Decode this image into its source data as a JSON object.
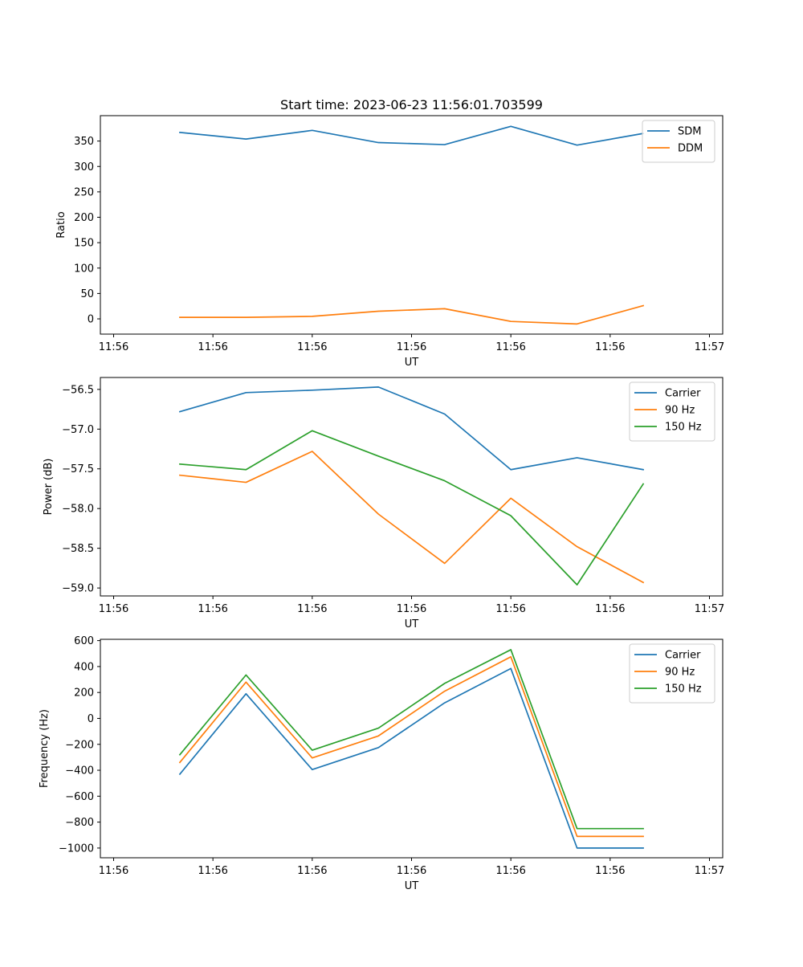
{
  "chart_data": [
    {
      "type": "line",
      "title": "Start time: 2023-06-23 11:56:01.703599",
      "xlabel": "UT",
      "ylabel": "Ratio",
      "x": [
        1,
        2,
        3,
        4,
        5,
        6,
        7,
        8
      ],
      "x_tick_values": [
        0,
        1.5,
        3,
        4.5,
        6,
        7.5,
        9
      ],
      "x_tick_labels": [
        "11:56",
        "11:56",
        "11:56",
        "11:56",
        "11:56",
        "11:56",
        "11:57"
      ],
      "xlim": [
        -0.2,
        9.2
      ],
      "ylim": [
        -30,
        400
      ],
      "y_ticks": [
        0,
        50,
        100,
        150,
        200,
        250,
        300,
        350
      ],
      "y_tick_labels": [
        "0",
        "50",
        "100",
        "150",
        "200",
        "250",
        "300",
        "350"
      ],
      "legend_position": "top-right",
      "grid": false,
      "series": [
        {
          "name": "SDM",
          "color": "#1f77b4",
          "values": [
            367,
            354,
            371,
            347,
            343,
            379,
            342,
            365
          ]
        },
        {
          "name": "DDM",
          "color": "#ff7f0e",
          "values": [
            3,
            3,
            5,
            15,
            20,
            -5,
            -10,
            26
          ]
        }
      ]
    },
    {
      "type": "line",
      "title": "",
      "xlabel": "UT",
      "ylabel": "Power (dB)",
      "x": [
        1,
        2,
        3,
        4,
        5,
        6,
        7,
        8
      ],
      "x_tick_values": [
        0,
        1.5,
        3,
        4.5,
        6,
        7.5,
        9
      ],
      "x_tick_labels": [
        "11:56",
        "11:56",
        "11:56",
        "11:56",
        "11:56",
        "11:56",
        "11:57"
      ],
      "xlim": [
        -0.2,
        9.2
      ],
      "ylim": [
        -59.1,
        -56.35
      ],
      "y_ticks": [
        -59.0,
        -58.5,
        -58.0,
        -57.5,
        -57.0,
        -56.5
      ],
      "y_tick_labels": [
        "−59.0",
        "−58.5",
        "−58.0",
        "−57.5",
        "−57.0",
        "−56.5"
      ],
      "legend_position": "top-right",
      "grid": false,
      "series": [
        {
          "name": "Carrier",
          "color": "#1f77b4",
          "values": [
            -56.78,
            -56.54,
            -56.51,
            -56.47,
            -56.81,
            -57.51,
            -57.36,
            -57.51
          ]
        },
        {
          "name": "90 Hz",
          "color": "#ff7f0e",
          "values": [
            -57.58,
            -57.67,
            -57.28,
            -58.07,
            -58.69,
            -57.87,
            -58.48,
            -58.93
          ]
        },
        {
          "name": "150 Hz",
          "color": "#2ca02c",
          "values": [
            -57.44,
            -57.51,
            -57.02,
            -57.34,
            -57.65,
            -58.09,
            -58.96,
            -57.69
          ]
        }
      ]
    },
    {
      "type": "line",
      "title": "",
      "xlabel": "UT",
      "ylabel": "Frequency (Hz)",
      "x": [
        1,
        2,
        3,
        4,
        5,
        6,
        7,
        8
      ],
      "x_tick_values": [
        0,
        1.5,
        3,
        4.5,
        6,
        7.5,
        9
      ],
      "x_tick_labels": [
        "11:56",
        "11:56",
        "11:56",
        "11:56",
        "11:56",
        "11:56",
        "11:57"
      ],
      "xlim": [
        -0.2,
        9.2
      ],
      "ylim": [
        -1075,
        610
      ],
      "y_ticks": [
        -1000,
        -800,
        -600,
        -400,
        -200,
        0,
        200,
        400,
        600
      ],
      "y_tick_labels": [
        "−1000",
        "−800",
        "−600",
        "−400",
        "−200",
        "0",
        "200",
        "400",
        "600"
      ],
      "legend_position": "top-right",
      "grid": false,
      "series": [
        {
          "name": "Carrier",
          "color": "#1f77b4",
          "values": [
            -430,
            190,
            -395,
            -225,
            120,
            385,
            -1000,
            -1000
          ]
        },
        {
          "name": "90 Hz",
          "color": "#ff7f0e",
          "values": [
            -340,
            280,
            -305,
            -135,
            210,
            475,
            -910,
            -910
          ]
        },
        {
          "name": "150 Hz",
          "color": "#2ca02c",
          "values": [
            -280,
            335,
            -245,
            -75,
            270,
            530,
            -850,
            -850
          ]
        }
      ]
    }
  ]
}
